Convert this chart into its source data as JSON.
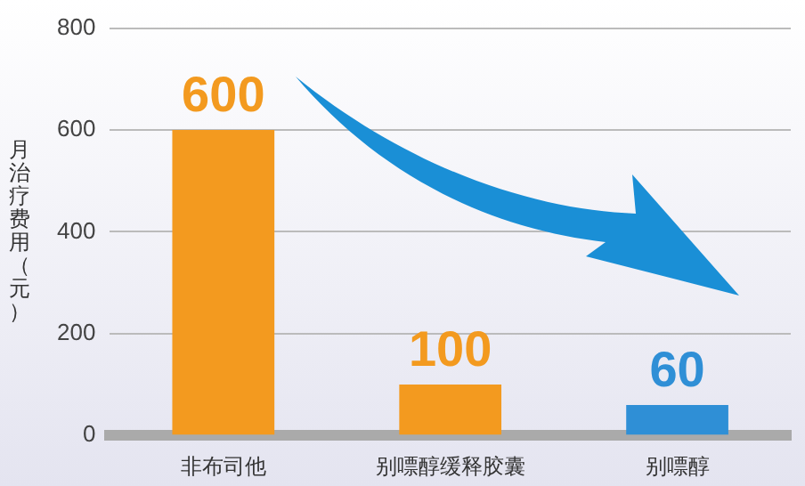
{
  "chart_data": {
    "type": "bar",
    "ylabel": "月治疗费用（元）",
    "categories": [
      "非布司他",
      "别嘌醇缓释胶囊",
      "别嘌醇"
    ],
    "values": [
      600,
      100,
      60
    ],
    "colors": [
      "#f39a1f",
      "#f39a1f",
      "#2f8fd6"
    ],
    "ylim": [
      0,
      800
    ],
    "yticks": [
      0,
      200,
      400,
      600,
      800
    ],
    "grid": "y",
    "data_labels": true
  }
}
